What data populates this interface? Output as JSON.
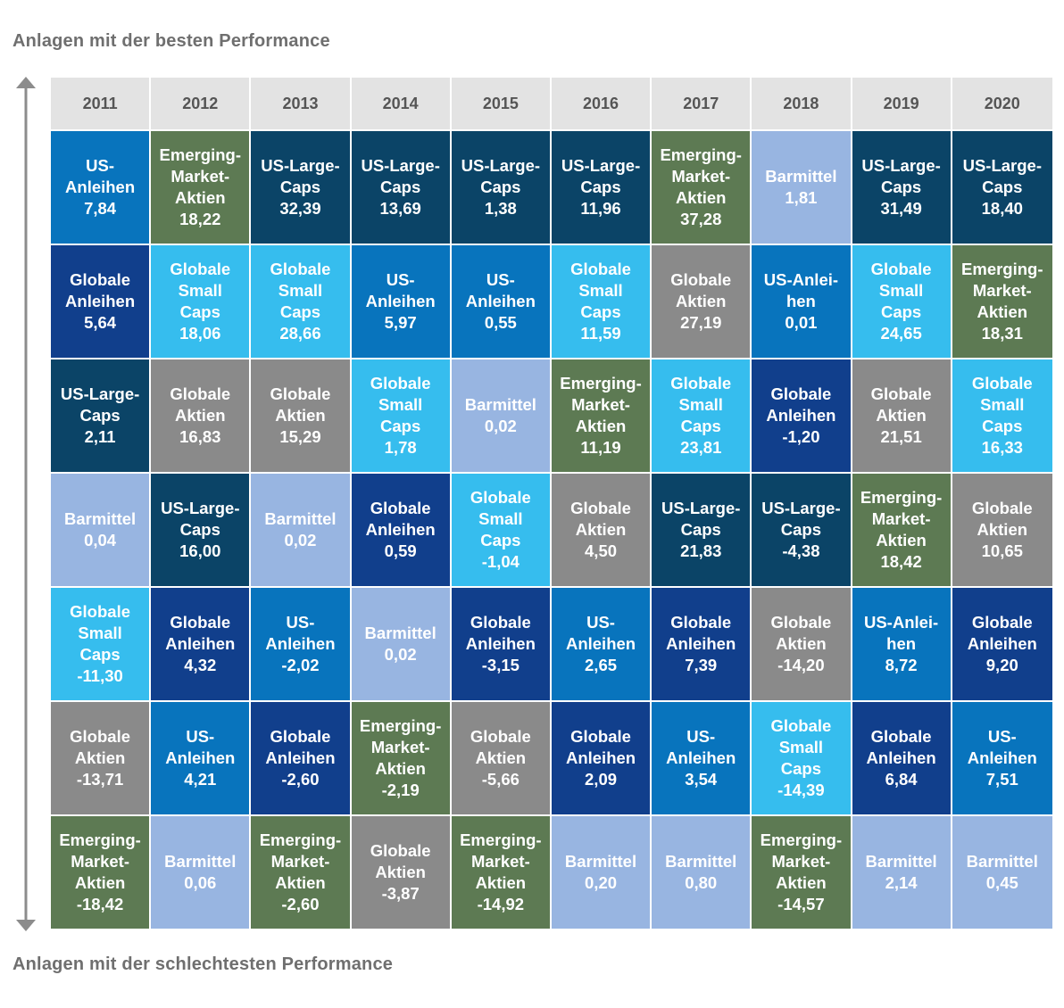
{
  "title_top": "Anlagen mit der besten Performance",
  "title_bottom": "Anlagen mit der schlechtesten Performance",
  "colors": {
    "Emerging-Market-Aktien": "#5d7a53",
    "US-Large-Caps": "#0b4467",
    "US-Anleihen": "#0874bd",
    "Globale Anleihen": "#113f8c",
    "Globale Small Caps": "#36bdee",
    "Globale Aktien": "#8a8a8a",
    "Barmittel": "#98b5e1",
    "header": "#e3e3e3",
    "axis": "#8c8c8c"
  },
  "chart_data": {
    "type": "table",
    "years": [
      "2011",
      "2012",
      "2013",
      "2014",
      "2015",
      "2016",
      "2017",
      "2018",
      "2019",
      "2020"
    ],
    "columns": [
      {
        "year": "2011",
        "cells": [
          {
            "asset": "US-Anleihen",
            "lines": [
              "US-",
              "Anleihen"
            ],
            "value": "7,84"
          },
          {
            "asset": "Globale Anleihen",
            "lines": [
              "Globale",
              "Anleihen"
            ],
            "value": "5,64"
          },
          {
            "asset": "US-Large-Caps",
            "lines": [
              "US-Large-",
              "Caps"
            ],
            "value": "2,11"
          },
          {
            "asset": "Barmittel",
            "lines": [
              "Barmittel"
            ],
            "value": "0,04"
          },
          {
            "asset": "Globale Small Caps",
            "lines": [
              "Globale",
              "Small",
              "Caps"
            ],
            "value": "-11,30"
          },
          {
            "asset": "Globale Aktien",
            "lines": [
              "Globale",
              "Aktien"
            ],
            "value": "-13,71"
          },
          {
            "asset": "Emerging-Market-Aktien",
            "lines": [
              "Emerging-",
              "Market-",
              "Aktien"
            ],
            "value": "-18,42"
          }
        ]
      },
      {
        "year": "2012",
        "cells": [
          {
            "asset": "Emerging-Market-Aktien",
            "lines": [
              "Emerging-",
              "Market-",
              "Aktien"
            ],
            "value": "18,22"
          },
          {
            "asset": "Globale Small Caps",
            "lines": [
              "Globale",
              "Small",
              "Caps"
            ],
            "value": "18,06"
          },
          {
            "asset": "Globale Aktien",
            "lines": [
              "Globale",
              "Aktien"
            ],
            "value": "16,83"
          },
          {
            "asset": "US-Large-Caps",
            "lines": [
              "US-Large-",
              "Caps"
            ],
            "value": "16,00"
          },
          {
            "asset": "Globale Anleihen",
            "lines": [
              "Globale",
              "Anleihen"
            ],
            "value": "4,32"
          },
          {
            "asset": "US-Anleihen",
            "lines": [
              "US-",
              "Anleihen"
            ],
            "value": "4,21"
          },
          {
            "asset": "Barmittel",
            "lines": [
              "Barmittel"
            ],
            "value": "0,06"
          }
        ]
      },
      {
        "year": "2013",
        "cells": [
          {
            "asset": "US-Large-Caps",
            "lines": [
              "US-Large-",
              "Caps"
            ],
            "value": "32,39"
          },
          {
            "asset": "Globale Small Caps",
            "lines": [
              "Globale",
              "Small",
              "Caps"
            ],
            "value": "28,66"
          },
          {
            "asset": "Globale Aktien",
            "lines": [
              "Globale",
              "Aktien"
            ],
            "value": "15,29"
          },
          {
            "asset": "Barmittel",
            "lines": [
              "Barmittel"
            ],
            "value": "0,02"
          },
          {
            "asset": "US-Anleihen",
            "lines": [
              "US-",
              "Anleihen"
            ],
            "value": "-2,02"
          },
          {
            "asset": "Globale Anleihen",
            "lines": [
              "Globale",
              "Anleihen"
            ],
            "value": "-2,60"
          },
          {
            "asset": "Emerging-Market-Aktien",
            "lines": [
              "Emerging-",
              "Market-",
              "Aktien"
            ],
            "value": "-2,60"
          }
        ]
      },
      {
        "year": "2014",
        "cells": [
          {
            "asset": "US-Large-Caps",
            "lines": [
              "US-Large-",
              "Caps"
            ],
            "value": "13,69"
          },
          {
            "asset": "US-Anleihen",
            "lines": [
              "US-",
              "Anleihen"
            ],
            "value": "5,97"
          },
          {
            "asset": "Globale Small Caps",
            "lines": [
              "Globale",
              "Small",
              "Caps"
            ],
            "value": "1,78"
          },
          {
            "asset": "Globale Anleihen",
            "lines": [
              "Globale",
              "Anleihen"
            ],
            "value": "0,59"
          },
          {
            "asset": "Barmittel",
            "lines": [
              "Barmittel"
            ],
            "value": "0,02"
          },
          {
            "asset": "Emerging-Market-Aktien",
            "lines": [
              "Emerging-",
              "Market-",
              "Aktien"
            ],
            "value": "-2,19"
          },
          {
            "asset": "Globale Aktien",
            "lines": [
              "Globale",
              "Aktien"
            ],
            "value": "-3,87"
          }
        ]
      },
      {
        "year": "2015",
        "cells": [
          {
            "asset": "US-Large-Caps",
            "lines": [
              "US-Large-",
              "Caps"
            ],
            "value": "1,38"
          },
          {
            "asset": "US-Anleihen",
            "lines": [
              "US-",
              "Anleihen"
            ],
            "value": "0,55"
          },
          {
            "asset": "Barmittel",
            "lines": [
              "Barmittel"
            ],
            "value": "0,02"
          },
          {
            "asset": "Globale Small Caps",
            "lines": [
              "Globale",
              "Small",
              "Caps"
            ],
            "value": "-1,04"
          },
          {
            "asset": "Globale Anleihen",
            "lines": [
              "Globale",
              "Anleihen"
            ],
            "value": "-3,15"
          },
          {
            "asset": "Globale Aktien",
            "lines": [
              "Globale",
              "Aktien"
            ],
            "value": "-5,66"
          },
          {
            "asset": "Emerging-Market-Aktien",
            "lines": [
              "Emerging-",
              "Market-",
              "Aktien"
            ],
            "value": "-14,92"
          }
        ]
      },
      {
        "year": "2016",
        "cells": [
          {
            "asset": "US-Large-Caps",
            "lines": [
              "US-Large-",
              "Caps"
            ],
            "value": "11,96"
          },
          {
            "asset": "Globale Small Caps",
            "lines": [
              "Globale",
              "Small",
              "Caps"
            ],
            "value": "11,59"
          },
          {
            "asset": "Emerging-Market-Aktien",
            "lines": [
              "Emerging-",
              "Market-",
              "Aktien"
            ],
            "value": "11,19"
          },
          {
            "asset": "Globale Aktien",
            "lines": [
              "Globale",
              "Aktien"
            ],
            "value": "4,50"
          },
          {
            "asset": "US-Anleihen",
            "lines": [
              "US-",
              "Anleihen"
            ],
            "value": "2,65"
          },
          {
            "asset": "Globale Anleihen",
            "lines": [
              "Globale",
              "Anleihen"
            ],
            "value": "2,09"
          },
          {
            "asset": "Barmittel",
            "lines": [
              "Barmittel"
            ],
            "value": "0,20"
          }
        ]
      },
      {
        "year": "2017",
        "cells": [
          {
            "asset": "Emerging-Market-Aktien",
            "lines": [
              "Emerging-",
              "Market-",
              "Aktien"
            ],
            "value": "37,28"
          },
          {
            "asset": "Globale Aktien",
            "lines": [
              "Globale",
              "Aktien"
            ],
            "value": "27,19"
          },
          {
            "asset": "Globale Small Caps",
            "lines": [
              "Globale",
              "Small",
              "Caps"
            ],
            "value": "23,81"
          },
          {
            "asset": "US-Large-Caps",
            "lines": [
              "US-Large-",
              "Caps"
            ],
            "value": "21,83"
          },
          {
            "asset": "Globale Anleihen",
            "lines": [
              "Globale",
              "Anleihen"
            ],
            "value": "7,39"
          },
          {
            "asset": "US-Anleihen",
            "lines": [
              "US-",
              "Anleihen"
            ],
            "value": "3,54"
          },
          {
            "asset": "Barmittel",
            "lines": [
              "Barmittel"
            ],
            "value": "0,80"
          }
        ]
      },
      {
        "year": "2018",
        "cells": [
          {
            "asset": "Barmittel",
            "lines": [
              "Barmittel"
            ],
            "value": "1,81"
          },
          {
            "asset": "US-Anleihen",
            "lines": [
              "US-Anlei-",
              "hen"
            ],
            "value": "0,01"
          },
          {
            "asset": "Globale Anleihen",
            "lines": [
              "Globale",
              "Anleihen"
            ],
            "value": "-1,20"
          },
          {
            "asset": "US-Large-Caps",
            "lines": [
              "US-Large-",
              "Caps"
            ],
            "value": "-4,38"
          },
          {
            "asset": "Globale Aktien",
            "lines": [
              "Globale",
              "Aktien"
            ],
            "value": "-14,20"
          },
          {
            "asset": "Globale Small Caps",
            "lines": [
              "Globale",
              "Small",
              "Caps"
            ],
            "value": "-14,39"
          },
          {
            "asset": "Emerging-Market-Aktien",
            "lines": [
              "Emerging-",
              "Market-",
              "Aktien"
            ],
            "value": "-14,57"
          }
        ]
      },
      {
        "year": "2019",
        "cells": [
          {
            "asset": "US-Large-Caps",
            "lines": [
              "US-Large-",
              "Caps"
            ],
            "value": "31,49"
          },
          {
            "asset": "Globale Small Caps",
            "lines": [
              "Globale",
              "Small",
              "Caps"
            ],
            "value": "24,65"
          },
          {
            "asset": "Globale Aktien",
            "lines": [
              "Globale",
              "Aktien"
            ],
            "value": "21,51"
          },
          {
            "asset": "Emerging-Market-Aktien",
            "lines": [
              "Emerging-",
              "Market-",
              "Aktien"
            ],
            "value": "18,42"
          },
          {
            "asset": "US-Anleihen",
            "lines": [
              "US-Anlei-",
              "hen"
            ],
            "value": "8,72"
          },
          {
            "asset": "Globale Anleihen",
            "lines": [
              "Globale",
              "Anleihen"
            ],
            "value": "6,84"
          },
          {
            "asset": "Barmittel",
            "lines": [
              "Barmittel"
            ],
            "value": "2,14"
          }
        ]
      },
      {
        "year": "2020",
        "cells": [
          {
            "asset": "US-Large-Caps",
            "lines": [
              "US-Large-",
              "Caps"
            ],
            "value": "18,40"
          },
          {
            "asset": "Emerging-Market-Aktien",
            "lines": [
              "Emerging-",
              "Market-",
              "Aktien"
            ],
            "value": "18,31"
          },
          {
            "asset": "Globale Small Caps",
            "lines": [
              "Globale",
              "Small",
              "Caps"
            ],
            "value": "16,33"
          },
          {
            "asset": "Globale Aktien",
            "lines": [
              "Globale",
              "Aktien"
            ],
            "value": "10,65"
          },
          {
            "asset": "Globale Anleihen",
            "lines": [
              "Globale",
              "Anleihen"
            ],
            "value": "9,20"
          },
          {
            "asset": "US-Anleihen",
            "lines": [
              "US-",
              "Anleihen"
            ],
            "value": "7,51"
          },
          {
            "asset": "Barmittel",
            "lines": [
              "Barmittel"
            ],
            "value": "0,45"
          }
        ]
      }
    ]
  }
}
